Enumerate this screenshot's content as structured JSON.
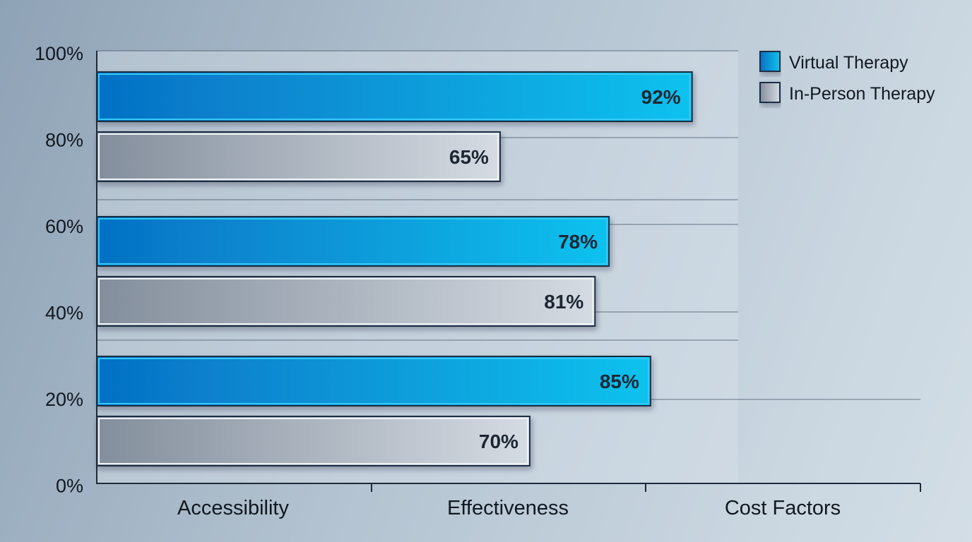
{
  "chart_data": {
    "type": "bar",
    "orientation": "horizontal",
    "categories": [
      "Accessibility",
      "Effectiveness",
      "Cost Factors"
    ],
    "y_ticks": [
      "100%",
      "80%",
      "60%",
      "40%",
      "20%",
      "0%"
    ],
    "series": [
      {
        "name": "Virtual Therapy",
        "values": [
          92,
          78,
          85
        ],
        "labels": [
          "92%",
          "78%",
          "85%"
        ],
        "color": "#0a8fdc"
      },
      {
        "name": "In-Person Therapy",
        "values": [
          65,
          81,
          70
        ],
        "labels": [
          "65%",
          "81%",
          "70%"
        ],
        "color": "#b5bfca"
      }
    ],
    "legend_position": "top-right",
    "grid": true
  }
}
